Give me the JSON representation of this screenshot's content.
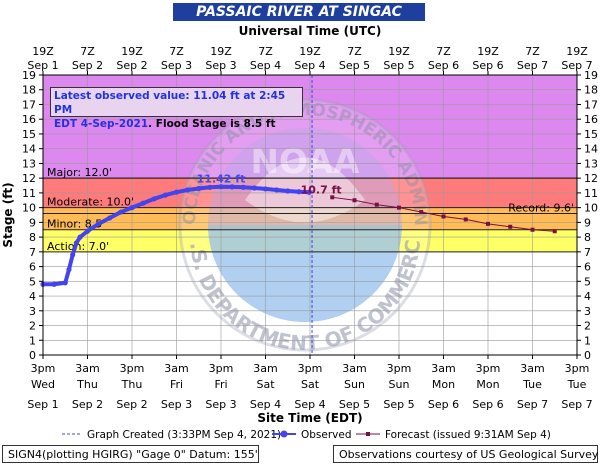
{
  "title": "PASSAIC RIVER AT SINGAC",
  "top_axis_title": "Universal Time (UTC)",
  "bottom_axis_title": "Site Time (EDT)",
  "y_axis_title": "Stage (ft)",
  "info_box": {
    "line1": "Latest observed value: 11.04 ft at 2:45 PM",
    "line2_a": "EDT 4-Sep-2021",
    "line2_b": ". Flood Stage is 8.5 ft"
  },
  "legend": {
    "created": "Graph Created (3:33PM Sep 4, 2021)",
    "observed": "Observed",
    "forecast": "Forecast (issued 9:31AM Sep 4)"
  },
  "footer": {
    "left": "SIGN4(plotting HGIRG) \"Gage 0\" Datum: 155'",
    "right": "Observations courtesy of US Geological Survey"
  },
  "watermark": {
    "top_text": "NATIONAL OCEANIC AND ATMOSPHERIC ADMINISTRATION",
    "center_text": "NOAA",
    "bottom_text": "U.S. DEPARTMENT OF COMMERCE"
  },
  "colors": {
    "major": "#dd88ee",
    "moderate": "#ff7b7b",
    "minor": "#ffbb55",
    "action": "#ffff66",
    "observed": "#4444ee",
    "forecast": "#7a0f45",
    "title_bg": "#1f3f9e"
  },
  "chart_data": {
    "type": "line",
    "title": "PASSAIC RIVER AT SINGAC",
    "xlabel": "Site Time (EDT)",
    "ylabel": "Stage (ft)",
    "ylim": [
      0,
      19
    ],
    "x_range_hours": [
      0,
      144
    ],
    "grid": true,
    "bottom_ticks": [
      {
        "line1": "3pm",
        "line2": "Wed",
        "line3": "Sep 1"
      },
      {
        "line1": "3am",
        "line2": "Thu",
        "line3": "Sep 2"
      },
      {
        "line1": "3pm",
        "line2": "Thu",
        "line3": "Sep 2"
      },
      {
        "line1": "3am",
        "line2": "Fri",
        "line3": "Sep 3"
      },
      {
        "line1": "3pm",
        "line2": "Fri",
        "line3": "Sep 3"
      },
      {
        "line1": "3am",
        "line2": "Sat",
        "line3": "Sep 4"
      },
      {
        "line1": "3pm",
        "line2": "Sat",
        "line3": "Sep 4"
      },
      {
        "line1": "3am",
        "line2": "Sun",
        "line3": "Sep 5"
      },
      {
        "line1": "3pm",
        "line2": "Sun",
        "line3": "Sep 5"
      },
      {
        "line1": "3am",
        "line2": "Mon",
        "line3": "Sep 6"
      },
      {
        "line1": "3pm",
        "line2": "Mon",
        "line3": "Sep 6"
      },
      {
        "line1": "3am",
        "line2": "Tue",
        "line3": "Sep 7"
      },
      {
        "line1": "3pm",
        "line2": "Tue",
        "line3": "Sep 7"
      }
    ],
    "top_ticks": [
      {
        "line1": "19Z",
        "line2": "Sep 1"
      },
      {
        "line1": "7Z",
        "line2": "Sep 2"
      },
      {
        "line1": "19Z",
        "line2": "Sep 2"
      },
      {
        "line1": "7Z",
        "line2": "Sep 3"
      },
      {
        "line1": "19Z",
        "line2": "Sep 3"
      },
      {
        "line1": "7Z",
        "line2": "Sep 4"
      },
      {
        "line1": "19Z",
        "line2": "Sep 4"
      },
      {
        "line1": "7Z",
        "line2": "Sep 5"
      },
      {
        "line1": "19Z",
        "line2": "Sep 5"
      },
      {
        "line1": "7Z",
        "line2": "Sep 6"
      },
      {
        "line1": "19Z",
        "line2": "Sep 6"
      },
      {
        "line1": "7Z",
        "line2": "Sep 7"
      },
      {
        "line1": "19Z",
        "line2": "Sep 7"
      }
    ],
    "y_ticks": [
      0,
      1,
      2,
      3,
      4,
      5,
      6,
      7,
      8,
      9,
      10,
      11,
      12,
      13,
      14,
      15,
      16,
      17,
      18,
      19
    ],
    "flood_categories": [
      {
        "name": "Action",
        "label": "Action: 7.0'",
        "from": 7.0,
        "to": 8.5,
        "color": "#ffff66"
      },
      {
        "name": "Minor",
        "label": "Minor: 8.5'",
        "from": 8.5,
        "to": 10.0,
        "color": "#ffbb55"
      },
      {
        "name": "Moderate",
        "label": "Moderate: 10.0'",
        "from": 10.0,
        "to": 12.0,
        "color": "#ff7b7b"
      },
      {
        "name": "Major",
        "label": "Major: 12.0'",
        "from": 12.0,
        "to": 19.0,
        "color": "#dd88ee"
      }
    ],
    "record": {
      "label": "Record: 9.6'",
      "value": 9.6
    },
    "graph_created_hour": 72.55,
    "series": [
      {
        "name": "Observed",
        "color": "#4444ee",
        "x": [
          0,
          3,
          6,
          7,
          8,
          9,
          10,
          12,
          15,
          18,
          21,
          24,
          27,
          30,
          33,
          36,
          39,
          42,
          45,
          48,
          51,
          54,
          57,
          60,
          63,
          66,
          69,
          71.75
        ],
        "y": [
          4.8,
          4.8,
          4.9,
          5.8,
          6.8,
          7.6,
          8.0,
          8.4,
          8.9,
          9.3,
          9.7,
          10.0,
          10.3,
          10.6,
          10.85,
          11.05,
          11.2,
          11.3,
          11.38,
          11.42,
          11.41,
          11.38,
          11.33,
          11.27,
          11.2,
          11.13,
          11.08,
          11.04
        ]
      },
      {
        "name": "Forecast",
        "color": "#7a0f45",
        "x": [
          78,
          84,
          90,
          96,
          102,
          108,
          114,
          120,
          126,
          132,
          138
        ],
        "y": [
          10.7,
          10.5,
          10.2,
          10.0,
          9.7,
          9.4,
          9.2,
          8.9,
          8.7,
          8.5,
          8.4
        ]
      }
    ],
    "annotations": [
      {
        "text": "11.42 ft",
        "x": 48,
        "y": 11.42,
        "color": "#4444ee"
      },
      {
        "text": "10.7 ft",
        "x": 75,
        "y": 10.7,
        "color": "#7a0f45"
      }
    ]
  }
}
